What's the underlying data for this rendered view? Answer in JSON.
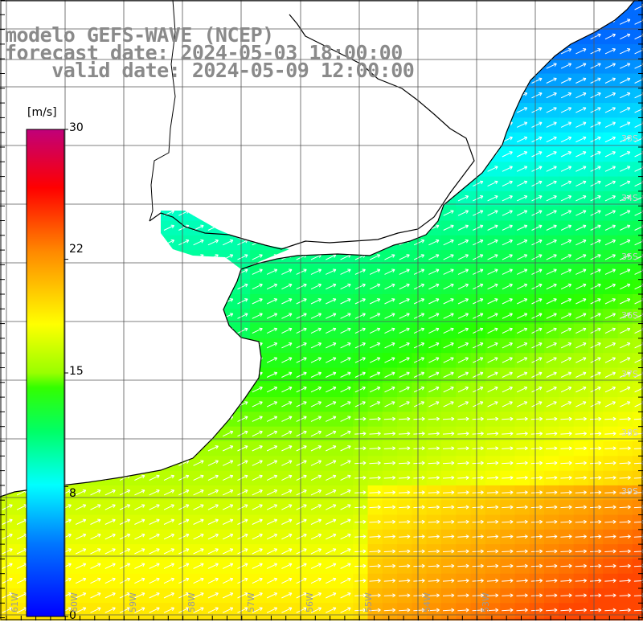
{
  "title": {
    "model": "modelo GEFS-WAVE (NCEP)",
    "forecast": "forecast date: 2024-05-03 18:00:00",
    "valid": "    valid date: 2024-05-09 12:00:00"
  },
  "colorbar": {
    "unit": "[m/s]",
    "ticks": [
      "30",
      "22",
      "15",
      "8",
      "0"
    ],
    "tick_values": [
      30,
      22,
      15,
      8,
      0
    ],
    "min": 0,
    "max": 30
  },
  "lat_labels": [
    "33S",
    "34S",
    "35S",
    "36S",
    "37S",
    "38S",
    "39S"
  ],
  "lon_labels": [
    "61W",
    "60W",
    "59W",
    "58W",
    "57W",
    "56W",
    "55W",
    "54W",
    "53W"
  ],
  "colors": {
    "land": "#ffffff",
    "coast": "#000000",
    "grid": "#555555",
    "arrows": "#ffffff",
    "title": "#8a8a8a"
  }
}
